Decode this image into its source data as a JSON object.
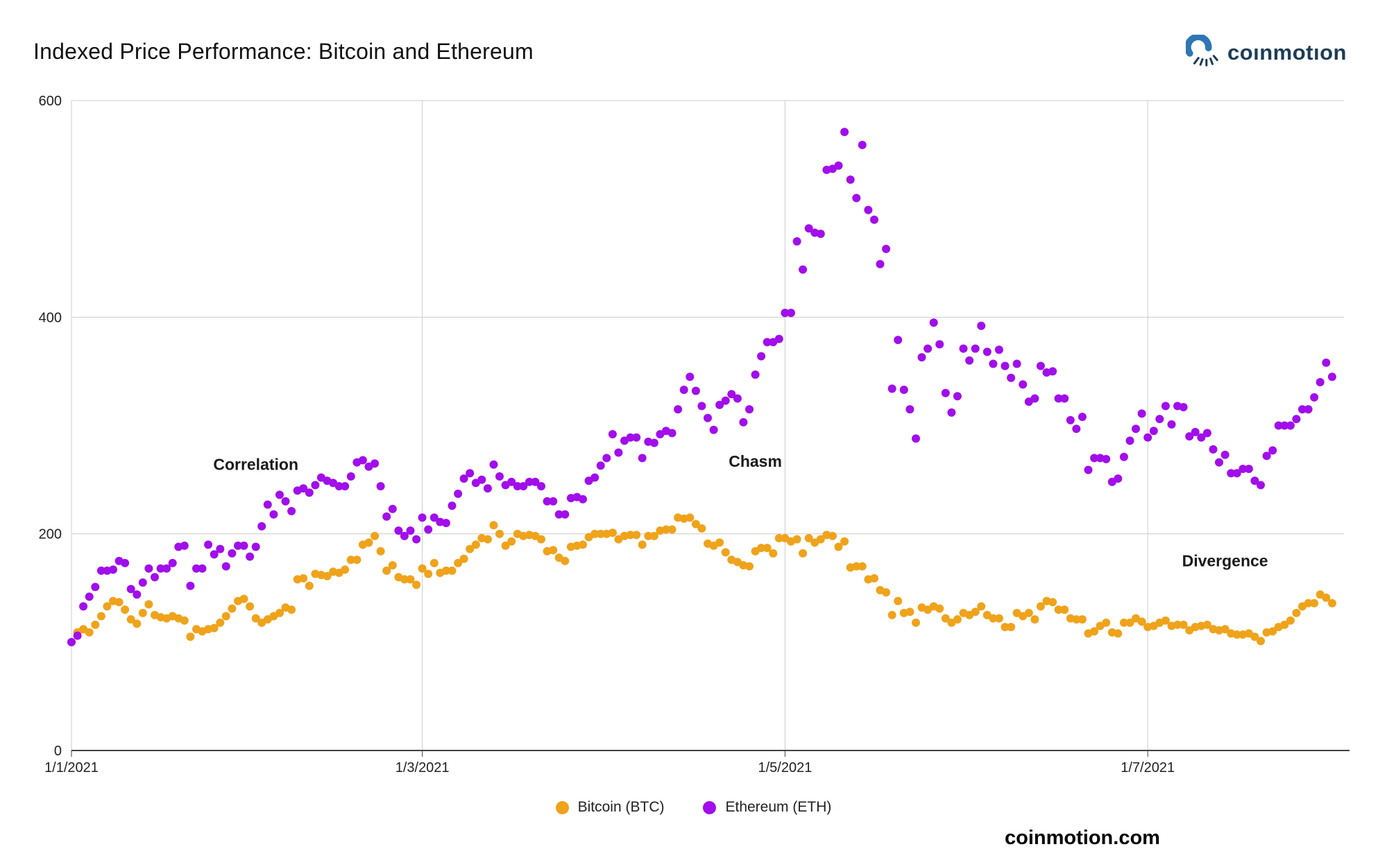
{
  "header": {
    "title": "Indexed Price Performance: Bitcoin and Ethereum",
    "brand": "coınmotıon"
  },
  "footer": {
    "site": "coinmotion.com"
  },
  "legend": [
    {
      "label": "Bitcoin (BTC)",
      "color": "#EFA31B"
    },
    {
      "label": "Ethereum (ETH)",
      "color": "#A10EEB"
    }
  ],
  "chart_data": {
    "type": "scatter",
    "title": "Indexed Price Performance: Bitcoin and Ethereum",
    "xlabel": "",
    "ylabel": "",
    "start_date": "1/1/2021",
    "frequency": "daily",
    "x_tick_labels": [
      "1/1/2021",
      "1/3/2021",
      "1/5/2021",
      "1/7/2021"
    ],
    "x_tick_days": [
      0,
      59,
      120,
      181
    ],
    "y_ticks": [
      0,
      200,
      400,
      600
    ],
    "ylim": [
      0,
      600
    ],
    "xlim_days": [
      0,
      214
    ],
    "grid": true,
    "legend_position": "bottom",
    "colors": {
      "grid": "#cccccc",
      "axis": "#424242",
      "text": "#212121",
      "annotation": "#1a1a1a"
    },
    "annotations": [
      {
        "label": "Correlation",
        "day": 31,
        "value": 259
      },
      {
        "label": "Chasm",
        "day": 115,
        "value": 262
      },
      {
        "label": "Divergence",
        "day": 194,
        "value": 170
      }
    ],
    "series": [
      {
        "name": "Bitcoin (BTC)",
        "color": "#EFA31B",
        "values": [
          100,
          109,
          112,
          109,
          116,
          124,
          133,
          138,
          137,
          130,
          121,
          117,
          127,
          135,
          125,
          123,
          122,
          124,
          122,
          120,
          105,
          112,
          110,
          112,
          113,
          118,
          124,
          131,
          138,
          140,
          133,
          122,
          118,
          121,
          124,
          127,
          132,
          130,
          158,
          159,
          152,
          163,
          162,
          161,
          165,
          164,
          167,
          176,
          176,
          190,
          192,
          198,
          184,
          166,
          171,
          160,
          158,
          158,
          153,
          168,
          163,
          173,
          164,
          166,
          166,
          173,
          177,
          186,
          190,
          196,
          195,
          208,
          200,
          189,
          193,
          200,
          198,
          199,
          198,
          195,
          184,
          185,
          178,
          175,
          188,
          189,
          190,
          197,
          200,
          200,
          200,
          201,
          195,
          198,
          199,
          199,
          190,
          198,
          198,
          203,
          204,
          204,
          215,
          214,
          215,
          209,
          205,
          191,
          189,
          192,
          183,
          176,
          174,
          171,
          170,
          184,
          187,
          187,
          182,
          196,
          196,
          193,
          195,
          182,
          196,
          192,
          195,
          199,
          198,
          188,
          193,
          169,
          170,
          170,
          158,
          159,
          148,
          146,
          125,
          138,
          127,
          128,
          118,
          132,
          130,
          133,
          131,
          122,
          118,
          121,
          127,
          125,
          128,
          133,
          125,
          122,
          122,
          114,
          114,
          127,
          124,
          127,
          121,
          133,
          138,
          137,
          130,
          130,
          122,
          121,
          121,
          108,
          110,
          115,
          118,
          109,
          108,
          118,
          118,
          122,
          119,
          114,
          115,
          118,
          120,
          115,
          116,
          116,
          111,
          114,
          115,
          116,
          112,
          111,
          112,
          108,
          107,
          107,
          108,
          105,
          101,
          109,
          110,
          114,
          116,
          120,
          127,
          133,
          136,
          136,
          144,
          141,
          136
        ]
      },
      {
        "name": "Ethereum (ETH)",
        "color": "#A10EEB",
        "values": [
          100,
          106,
          133,
          142,
          151,
          166,
          166,
          167,
          175,
          173,
          149,
          144,
          155,
          168,
          160,
          168,
          168,
          173,
          188,
          189,
          152,
          168,
          168,
          190,
          181,
          186,
          170,
          182,
          189,
          189,
          179,
          188,
          207,
          227,
          218,
          236,
          230,
          221,
          240,
          242,
          238,
          245,
          252,
          249,
          247,
          244,
          244,
          253,
          266,
          268,
          262,
          265,
          244,
          216,
          223,
          203,
          198,
          203,
          195,
          215,
          204,
          215,
          211,
          210,
          226,
          237,
          251,
          256,
          247,
          250,
          242,
          264,
          253,
          245,
          248,
          244,
          244,
          248,
          248,
          244,
          230,
          230,
          218,
          218,
          233,
          234,
          232,
          249,
          252,
          263,
          270,
          292,
          275,
          286,
          289,
          289,
          270,
          285,
          284,
          292,
          295,
          293,
          315,
          333,
          345,
          332,
          318,
          307,
          296,
          319,
          323,
          329,
          325,
          303,
          315,
          347,
          364,
          377,
          377,
          380,
          404,
          404,
          470,
          444,
          482,
          478,
          477,
          536,
          537,
          540,
          571,
          527,
          510,
          559,
          499,
          490,
          449,
          463,
          334,
          379,
          333,
          315,
          288,
          363,
          371,
          395,
          375,
          330,
          312,
          327,
          371,
          360,
          371,
          392,
          368,
          357,
          370,
          355,
          344,
          357,
          338,
          322,
          325,
          355,
          349,
          350,
          325,
          325,
          305,
          297,
          308,
          259,
          270,
          270,
          269,
          248,
          251,
          271,
          286,
          297,
          311,
          289,
          295,
          306,
          318,
          301,
          318,
          317,
          290,
          294,
          289,
          293,
          278,
          266,
          273,
          256,
          256,
          260,
          260,
          249,
          245,
          272,
          277,
          300,
          300,
          300,
          306,
          315,
          315,
          326,
          340,
          358,
          345
        ]
      }
    ]
  }
}
